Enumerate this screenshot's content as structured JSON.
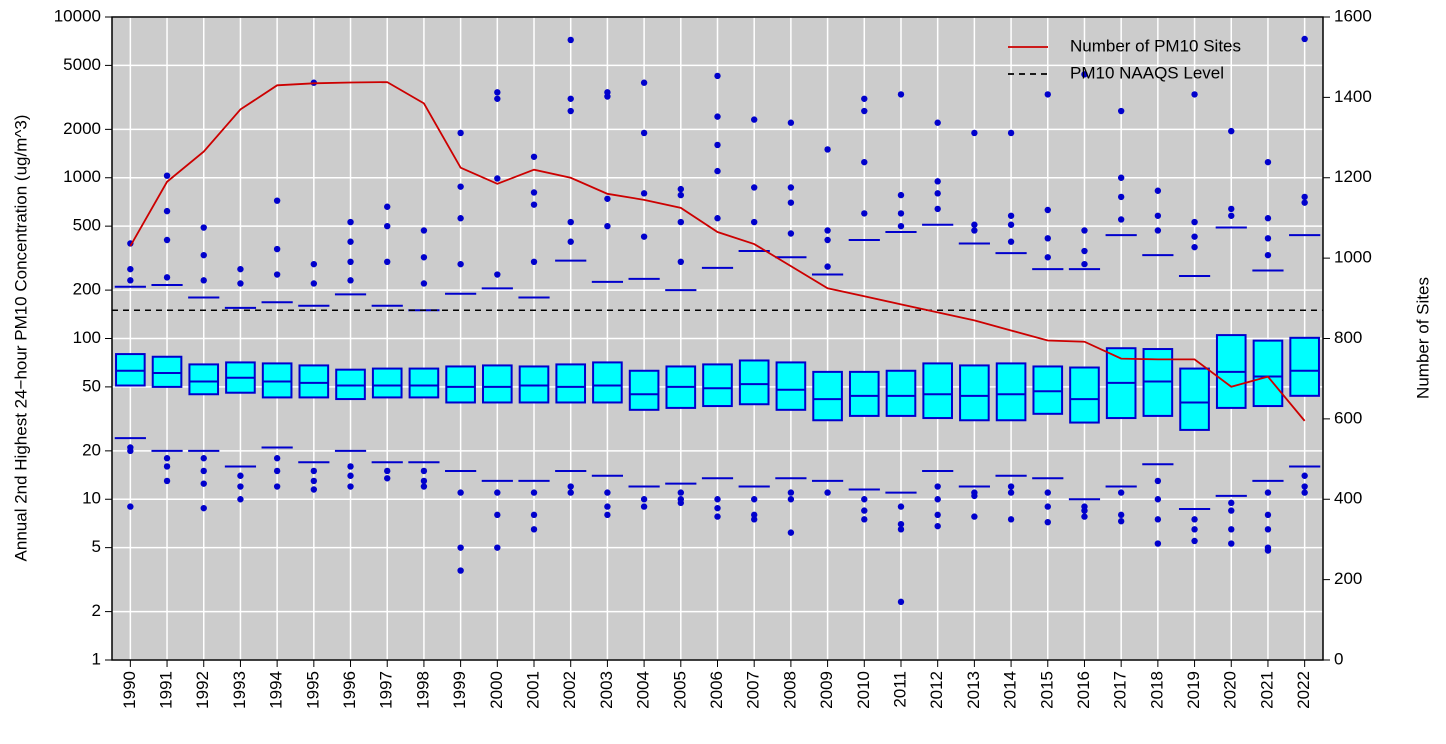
{
  "chart_data": {
    "type": "box",
    "y_label": "Annual 2nd Highest 24−hour PM10 Concentration (ug/m^3)",
    "y2_label": "Number of Sites",
    "categories": [
      "1990",
      "1991",
      "1992",
      "1993",
      "1994",
      "1995",
      "1996",
      "1997",
      "1998",
      "1999",
      "2000",
      "2001",
      "2002",
      "2003",
      "2004",
      "2005",
      "2006",
      "2007",
      "2008",
      "2009",
      "2010",
      "2011",
      "2012",
      "2013",
      "2014",
      "2015",
      "2016",
      "2017",
      "2018",
      "2019",
      "2020",
      "2021",
      "2022"
    ],
    "box_fill": "#00ffff",
    "box_color": "#0000cc",
    "boxes": [
      {
        "whislo": 24,
        "q1": 51,
        "med": 63,
        "q3": 80,
        "whishi": 210,
        "fliers": [
          390,
          270,
          230,
          21,
          20,
          9
        ]
      },
      {
        "whislo": 20,
        "q1": 50,
        "med": 61,
        "q3": 77,
        "whishi": 215,
        "fliers": [
          1030,
          620,
          410,
          240,
          18,
          16,
          13
        ]
      },
      {
        "whislo": 20,
        "q1": 45,
        "med": 54,
        "q3": 69,
        "whishi": 180,
        "fliers": [
          490,
          330,
          230,
          18,
          15,
          12.5,
          8.8
        ]
      },
      {
        "whislo": 16,
        "q1": 46,
        "med": 57,
        "q3": 71,
        "whishi": 155,
        "fliers": [
          270,
          220,
          14,
          12,
          10
        ]
      },
      {
        "whislo": 21,
        "q1": 43,
        "med": 54,
        "q3": 70,
        "whishi": 168,
        "fliers": [
          720,
          360,
          250,
          18,
          15,
          12
        ]
      },
      {
        "whislo": 17,
        "q1": 43,
        "med": 53,
        "q3": 68,
        "whishi": 160,
        "fliers": [
          3900,
          290,
          220,
          15,
          13,
          11.5
        ]
      },
      {
        "whislo": 20,
        "q1": 42,
        "med": 51,
        "q3": 64,
        "whishi": 188,
        "fliers": [
          530,
          400,
          300,
          230,
          16,
          14,
          12
        ]
      },
      {
        "whislo": 17,
        "q1": 43,
        "med": 51,
        "q3": 65,
        "whishi": 160,
        "fliers": [
          660,
          500,
          300,
          15,
          13.5
        ]
      },
      {
        "whislo": 17,
        "q1": 43,
        "med": 51,
        "q3": 65,
        "whishi": 150,
        "fliers": [
          470,
          320,
          220,
          15,
          13,
          12
        ]
      },
      {
        "whislo": 15,
        "q1": 40,
        "med": 50,
        "q3": 67,
        "whishi": 190,
        "fliers": [
          1900,
          880,
          560,
          290,
          11,
          5,
          3.6
        ]
      },
      {
        "whislo": 13,
        "q1": 40,
        "med": 50,
        "q3": 68,
        "whishi": 205,
        "fliers": [
          3400,
          3100,
          990,
          250,
          11,
          8,
          5
        ]
      },
      {
        "whislo": 13,
        "q1": 40,
        "med": 51,
        "q3": 67,
        "whishi": 180,
        "fliers": [
          1350,
          810,
          680,
          300,
          11,
          8,
          6.5
        ]
      },
      {
        "whislo": 15,
        "q1": 40,
        "med": 50,
        "q3": 69,
        "whishi": 305,
        "fliers": [
          7200,
          3100,
          2600,
          530,
          400,
          12,
          11
        ]
      },
      {
        "whislo": 14,
        "q1": 40,
        "med": 51,
        "q3": 71,
        "whishi": 225,
        "fliers": [
          3400,
          3200,
          740,
          500,
          11,
          9,
          8
        ]
      },
      {
        "whislo": 12,
        "q1": 36,
        "med": 45,
        "q3": 63,
        "whishi": 235,
        "fliers": [
          3900,
          1900,
          800,
          430,
          10,
          9
        ]
      },
      {
        "whislo": 12.5,
        "q1": 37,
        "med": 50,
        "q3": 67,
        "whishi": 200,
        "fliers": [
          850,
          780,
          530,
          300,
          11,
          10,
          9.5
        ]
      },
      {
        "whislo": 13.5,
        "q1": 38,
        "med": 49,
        "q3": 69,
        "whishi": 275,
        "fliers": [
          4300,
          2400,
          1600,
          1100,
          560,
          10,
          8.8,
          7.8
        ]
      },
      {
        "whislo": 12,
        "q1": 39,
        "med": 52,
        "q3": 73,
        "whishi": 350,
        "fliers": [
          2300,
          870,
          530,
          10,
          8,
          7.5
        ]
      },
      {
        "whislo": 13.5,
        "q1": 36,
        "med": 48,
        "q3": 71,
        "whishi": 320,
        "fliers": [
          2200,
          870,
          700,
          450,
          11,
          10,
          6.2
        ]
      },
      {
        "whislo": 13,
        "q1": 31,
        "med": 42,
        "q3": 62,
        "whishi": 250,
        "fliers": [
          1500,
          470,
          410,
          280,
          11
        ]
      },
      {
        "whislo": 11.5,
        "q1": 33,
        "med": 44,
        "q3": 62,
        "whishi": 410,
        "fliers": [
          3100,
          2600,
          1250,
          600,
          10,
          8.5,
          7.5
        ]
      },
      {
        "whislo": 11,
        "q1": 33,
        "med": 44,
        "q3": 63,
        "whishi": 460,
        "fliers": [
          3300,
          780,
          600,
          500,
          9,
          7,
          6.5,
          2.3
        ]
      },
      {
        "whislo": 15,
        "q1": 32,
        "med": 45,
        "q3": 70,
        "whishi": 510,
        "fliers": [
          2200,
          950,
          800,
          640,
          12,
          10,
          8,
          6.8
        ]
      },
      {
        "whislo": 12,
        "q1": 31,
        "med": 44,
        "q3": 68,
        "whishi": 390,
        "fliers": [
          1900,
          510,
          470,
          11,
          10.5,
          7.8
        ]
      },
      {
        "whislo": 14,
        "q1": 31,
        "med": 45,
        "q3": 70,
        "whishi": 340,
        "fliers": [
          1900,
          580,
          510,
          400,
          12,
          11,
          7.5
        ]
      },
      {
        "whislo": 13.5,
        "q1": 34,
        "med": 47,
        "q3": 67,
        "whishi": 270,
        "fliers": [
          3300,
          630,
          420,
          320,
          11,
          9,
          7.2
        ]
      },
      {
        "whislo": 10,
        "q1": 30,
        "med": 42,
        "q3": 66,
        "whishi": 270,
        "fliers": [
          4400,
          470,
          350,
          290,
          9,
          8.5,
          7.8
        ]
      },
      {
        "whislo": 12,
        "q1": 32,
        "med": 53,
        "q3": 87,
        "whishi": 440,
        "fliers": [
          2600,
          1000,
          760,
          550,
          11,
          8,
          7.3
        ]
      },
      {
        "whislo": 16.5,
        "q1": 33,
        "med": 54,
        "q3": 86,
        "whishi": 330,
        "fliers": [
          830,
          580,
          470,
          13,
          10,
          7.5,
          5.3
        ]
      },
      {
        "whislo": 8.7,
        "q1": 27,
        "med": 40,
        "q3": 65,
        "whishi": 245,
        "fliers": [
          3300,
          530,
          430,
          370,
          7.5,
          6.5,
          5.5
        ]
      },
      {
        "whislo": 10.5,
        "q1": 37,
        "med": 62,
        "q3": 105,
        "whishi": 490,
        "fliers": [
          1950,
          640,
          580,
          9.5,
          8.5,
          6.5,
          5.3
        ]
      },
      {
        "whislo": 13,
        "q1": 38,
        "med": 58,
        "q3": 97,
        "whishi": 265,
        "fliers": [
          1250,
          560,
          420,
          330,
          11,
          8,
          6.5,
          5,
          4.8
        ]
      },
      {
        "whislo": 16,
        "q1": 44,
        "med": 63,
        "q3": 101,
        "whishi": 440,
        "fliers": [
          7300,
          760,
          700,
          14,
          12,
          11
        ]
      }
    ],
    "series": [
      {
        "name": "Number of PM10 Sites",
        "color": "#cc0000",
        "axis": "y2",
        "values": [
          1030,
          1190,
          1265,
          1370,
          1430,
          1435,
          1437,
          1438,
          1385,
          1225,
          1185,
          1220,
          1200,
          1160,
          1145,
          1125,
          1065,
          1035,
          980,
          925,
          905,
          885,
          865,
          845,
          820,
          795,
          792,
          750,
          748,
          748,
          680,
          705,
          595
        ]
      }
    ],
    "reference_lines": [
      {
        "name": "PM10 NAAQS Level",
        "value": 150,
        "color": "#000000",
        "style": "dashed"
      }
    ],
    "ylim": [
      1,
      10000
    ],
    "yscale": "log",
    "yticks": [
      1,
      2,
      5,
      10,
      20,
      50,
      100,
      200,
      500,
      1000,
      2000,
      5000,
      10000
    ],
    "y2lim": [
      0,
      1600
    ],
    "y2ticks": [
      0,
      200,
      400,
      600,
      800,
      1000,
      1200,
      1400,
      1600
    ],
    "grid": true,
    "legend": "upper right"
  }
}
